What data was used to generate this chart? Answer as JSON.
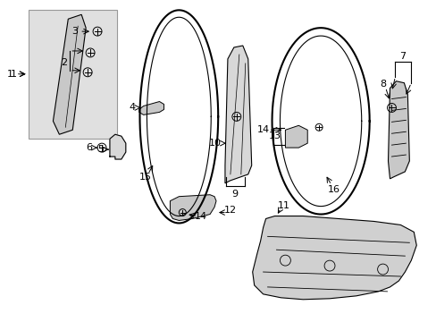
{
  "background_color": "#ffffff",
  "line_color": "#000000",
  "gray_fill": "#d0d0d0",
  "light_gray": "#e8e8e8",
  "font_size": 8,
  "figsize": [
    4.89,
    3.6
  ],
  "dpi": 100
}
